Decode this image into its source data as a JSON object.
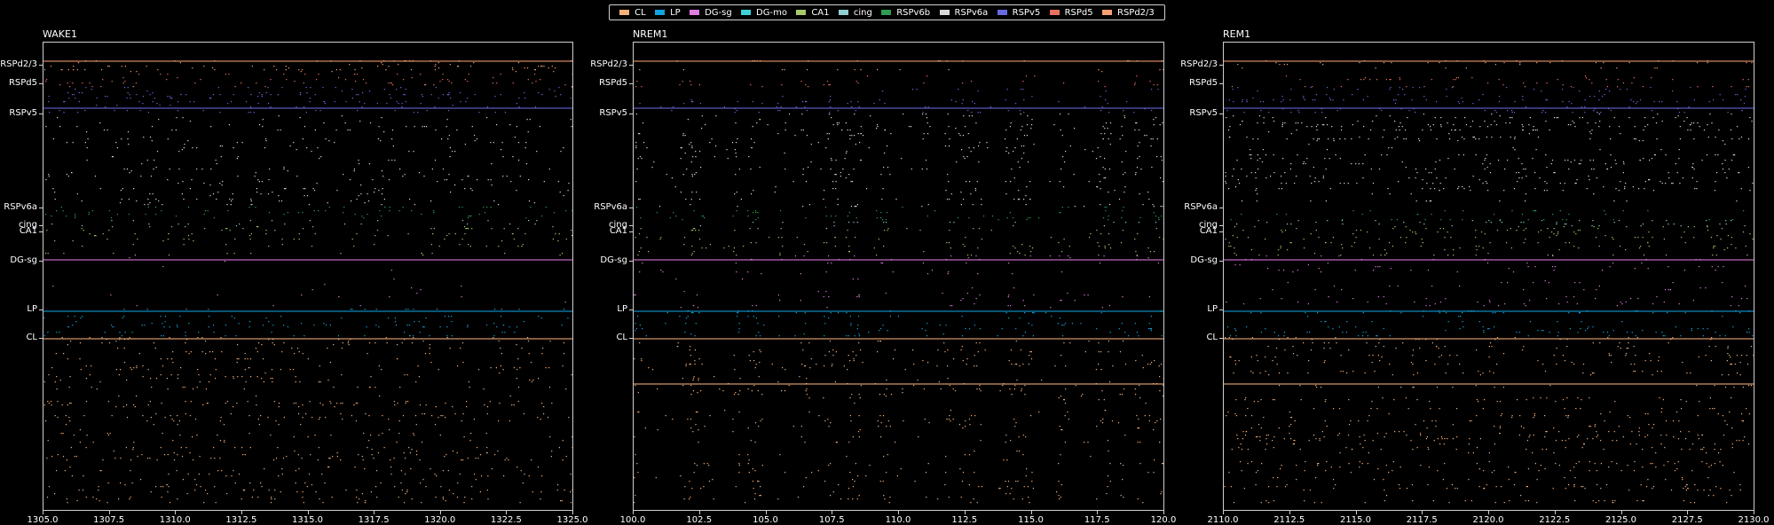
{
  "legend": [
    {
      "label": "CL",
      "color": "#f5b07a"
    },
    {
      "label": "LP",
      "color": "#12a4e0"
    },
    {
      "label": "DG-sg",
      "color": "#e07be0"
    },
    {
      "label": "DG-mo",
      "color": "#3fd1d8"
    },
    {
      "label": "CA1",
      "color": "#a6c96a"
    },
    {
      "label": "cing",
      "color": "#8fcfcf"
    },
    {
      "label": "RSPv6b",
      "color": "#2e9d52"
    },
    {
      "label": "RSPv6a",
      "color": "#d8d8d8"
    },
    {
      "label": "RSPv5",
      "color": "#6a6ae0"
    },
    {
      "label": "RSPd5",
      "color": "#e87060"
    },
    {
      "label": "RSPd2/3",
      "color": "#f5a070"
    }
  ],
  "chart_data": [
    {
      "type": "scatter",
      "subtype": "spike raster",
      "title": "WAKE1",
      "xlim": [
        1305.0,
        1325.0
      ],
      "xticks": [
        "1305.0",
        "1307.5",
        "1310.0",
        "1312.5",
        "1315.0",
        "1317.5",
        "1320.0",
        "1322.5",
        "1325.0"
      ],
      "yticks": [
        "RSPd2/3",
        "RSPd5",
        "RSPv5",
        "RSPv6a",
        "cing",
        "CA1",
        "DG-sg",
        "LP",
        "CL"
      ],
      "state": "wake"
    },
    {
      "type": "scatter",
      "subtype": "spike raster",
      "title": "NREM1",
      "xlim": [
        100.0,
        120.0
      ],
      "xticks": [
        "100.0",
        "102.5",
        "105.0",
        "107.5",
        "110.0",
        "112.5",
        "115.0",
        "117.5",
        "120.0"
      ],
      "yticks": [
        "RSPd2/3",
        "RSPd5",
        "RSPv5",
        "RSPv6a",
        "cing",
        "CA1",
        "DG-sg",
        "LP",
        "CL"
      ],
      "state": "nrem"
    },
    {
      "type": "scatter",
      "subtype": "spike raster",
      "title": "REM1",
      "xlim": [
        2110.0,
        2130.0
      ],
      "xticks": [
        "2110.0",
        "2112.5",
        "2115.0",
        "2117.5",
        "2120.0",
        "2122.5",
        "2125.0",
        "2127.5",
        "2130.0"
      ],
      "yticks": [
        "RSPd2/3",
        "RSPd5",
        "RSPv5",
        "RSPv6a",
        "cing",
        "CA1",
        "DG-sg",
        "LP",
        "CL"
      ],
      "state": "rem"
    }
  ]
}
